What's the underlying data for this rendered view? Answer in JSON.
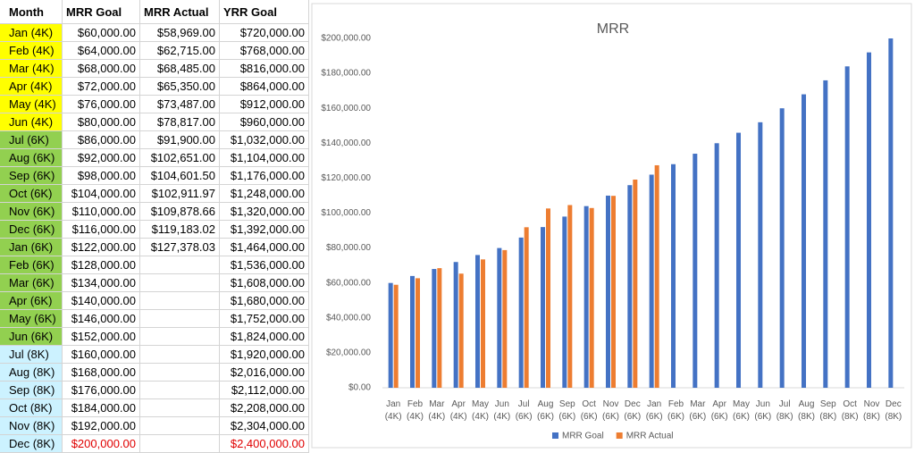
{
  "table": {
    "columns": [
      "Month",
      "MRR Goal",
      "MRR Actual",
      "YRR Goal"
    ],
    "rows": [
      [
        "Jan (4K)",
        "$60,000.00",
        "$58,969.00",
        "$720,000.00"
      ],
      [
        "Feb (4K)",
        "$64,000.00",
        "$62,715.00",
        "$768,000.00"
      ],
      [
        "Mar (4K)",
        "$68,000.00",
        "$68,485.00",
        "$816,000.00"
      ],
      [
        "Apr (4K)",
        "$72,000.00",
        "$65,350.00",
        "$864,000.00"
      ],
      [
        "May (4K)",
        "$76,000.00",
        "$73,487.00",
        "$912,000.00"
      ],
      [
        "Jun (4K)",
        "$80,000.00",
        "$78,817.00",
        "$960,000.00"
      ],
      [
        "Jul (6K)",
        "$86,000.00",
        "$91,900.00",
        "$1,032,000.00"
      ],
      [
        "Aug (6K)",
        "$92,000.00",
        "$102,651.00",
        "$1,104,000.00"
      ],
      [
        "Sep (6K)",
        "$98,000.00",
        "$104,601.50",
        "$1,176,000.00"
      ],
      [
        "Oct (6K)",
        "$104,000.00",
        "$102,911.97",
        "$1,248,000.00"
      ],
      [
        "Nov (6K)",
        "$110,000.00",
        "$109,878.66",
        "$1,320,000.00"
      ],
      [
        "Dec (6K)",
        "$116,000.00",
        "$119,183.02",
        "$1,392,000.00"
      ],
      [
        "Jan (6K)",
        "$122,000.00",
        "$127,378.03",
        "$1,464,000.00"
      ],
      [
        "Feb (6K)",
        "$128,000.00",
        null,
        "$1,536,000.00"
      ],
      [
        "Mar (6K)",
        "$134,000.00",
        null,
        "$1,608,000.00"
      ],
      [
        "Apr (6K)",
        "$140,000.00",
        null,
        "$1,680,000.00"
      ],
      [
        "May (6K)",
        "$146,000.00",
        null,
        "$1,752,000.00"
      ],
      [
        "Jun (6K)",
        "$152,000.00",
        null,
        "$1,824,000.00"
      ],
      [
        "Jul (8K)",
        "$160,000.00",
        null,
        "$1,920,000.00"
      ],
      [
        "Aug (8K)",
        "$168,000.00",
        null,
        "$2,016,000.00"
      ],
      [
        "Sep (8K)",
        "$176,000.00",
        null,
        "$2,112,000.00"
      ],
      [
        "Oct (8K)",
        "$184,000.00",
        null,
        "$2,208,000.00"
      ],
      [
        "Nov (8K)",
        "$192,000.00",
        null,
        "$2,304,000.00"
      ],
      [
        "Dec (8K)",
        "$200,000.00",
        null,
        "$2,400,000.00"
      ]
    ]
  },
  "chart_data": {
    "type": "bar",
    "title": "MRR",
    "categories": [
      "Jan (4K)",
      "Feb (4K)",
      "Mar (4K)",
      "Apr (4K)",
      "May (4K)",
      "Jun (4K)",
      "Jul (6K)",
      "Aug (6K)",
      "Sep (6K)",
      "Oct (6K)",
      "Nov (6K)",
      "Dec (6K)",
      "Jan (6K)",
      "Feb (6K)",
      "Mar (6K)",
      "Apr (6K)",
      "May (6K)",
      "Jun (6K)",
      "Jul (8K)",
      "Aug (8K)",
      "Sep (8K)",
      "Oct (8K)",
      "Nov (8K)",
      "Dec (8K)"
    ],
    "series": [
      {
        "name": "MRR Goal",
        "color": "#4472c4",
        "values": [
          60000,
          64000,
          68000,
          72000,
          76000,
          80000,
          86000,
          92000,
          98000,
          104000,
          110000,
          116000,
          122000,
          128000,
          134000,
          140000,
          146000,
          152000,
          160000,
          168000,
          176000,
          184000,
          192000,
          200000
        ]
      },
      {
        "name": "MRR Actual",
        "color": "#ed7d31",
        "values": [
          58969,
          62715,
          68485,
          65350,
          73487,
          78817,
          91900,
          102651,
          104601.5,
          102911.97,
          109878.66,
          119183.02,
          127378.03,
          null,
          null,
          null,
          null,
          null,
          null,
          null,
          null,
          null,
          null,
          null
        ]
      }
    ],
    "ylim": [
      0,
      200000
    ],
    "yticks": [
      {
        "value": 0,
        "label": "$0.00"
      },
      {
        "value": 20000,
        "label": "$20,000.00"
      },
      {
        "value": 40000,
        "label": "$40,000.00"
      },
      {
        "value": 60000,
        "label": "$60,000.00"
      },
      {
        "value": 80000,
        "label": "$80,000.00"
      },
      {
        "value": 100000,
        "label": "$100,000.00"
      },
      {
        "value": 120000,
        "label": "$120,000.00"
      },
      {
        "value": 140000,
        "label": "$140,000.00"
      },
      {
        "value": 160000,
        "label": "$160,000.00"
      },
      {
        "value": 180000,
        "label": "$180,000.00"
      },
      {
        "value": 200000,
        "label": "$200,000.00"
      }
    ],
    "grid": false,
    "legend": "bottom"
  }
}
